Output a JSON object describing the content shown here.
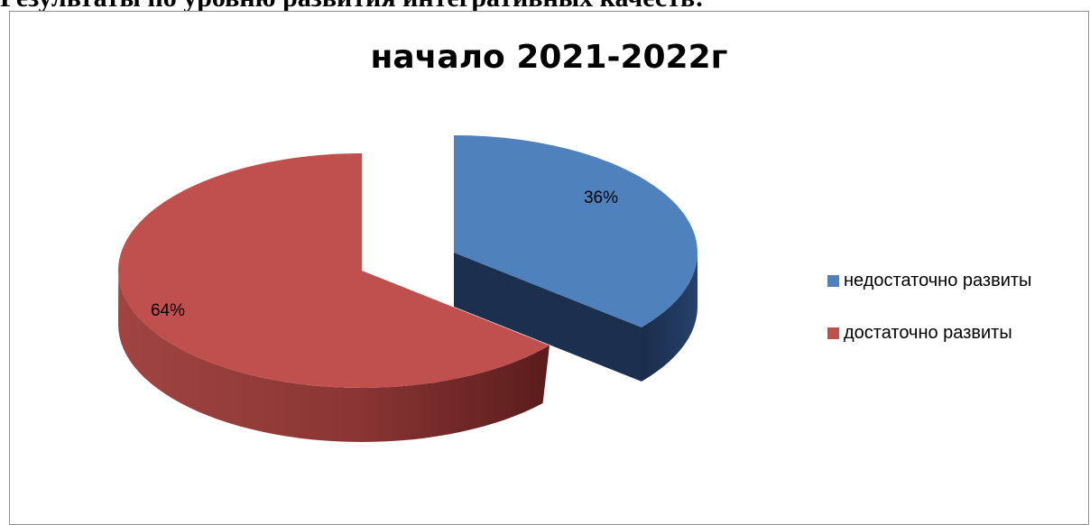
{
  "document": {
    "heading": "Результаты по уровню развития интегративных качеств:"
  },
  "chart_data": {
    "type": "pie",
    "title": "начало 2021-2022г",
    "legend_position": "right",
    "slices": [
      {
        "label": "недостаточно развиты",
        "value": 36,
        "display": "36%",
        "color": "#4f81bd",
        "side_color": "#1f3559"
      },
      {
        "label": "достаточно развиты",
        "value": 64,
        "display": "64%",
        "color": "#c0504d",
        "side_color": "#6e2322"
      }
    ]
  }
}
